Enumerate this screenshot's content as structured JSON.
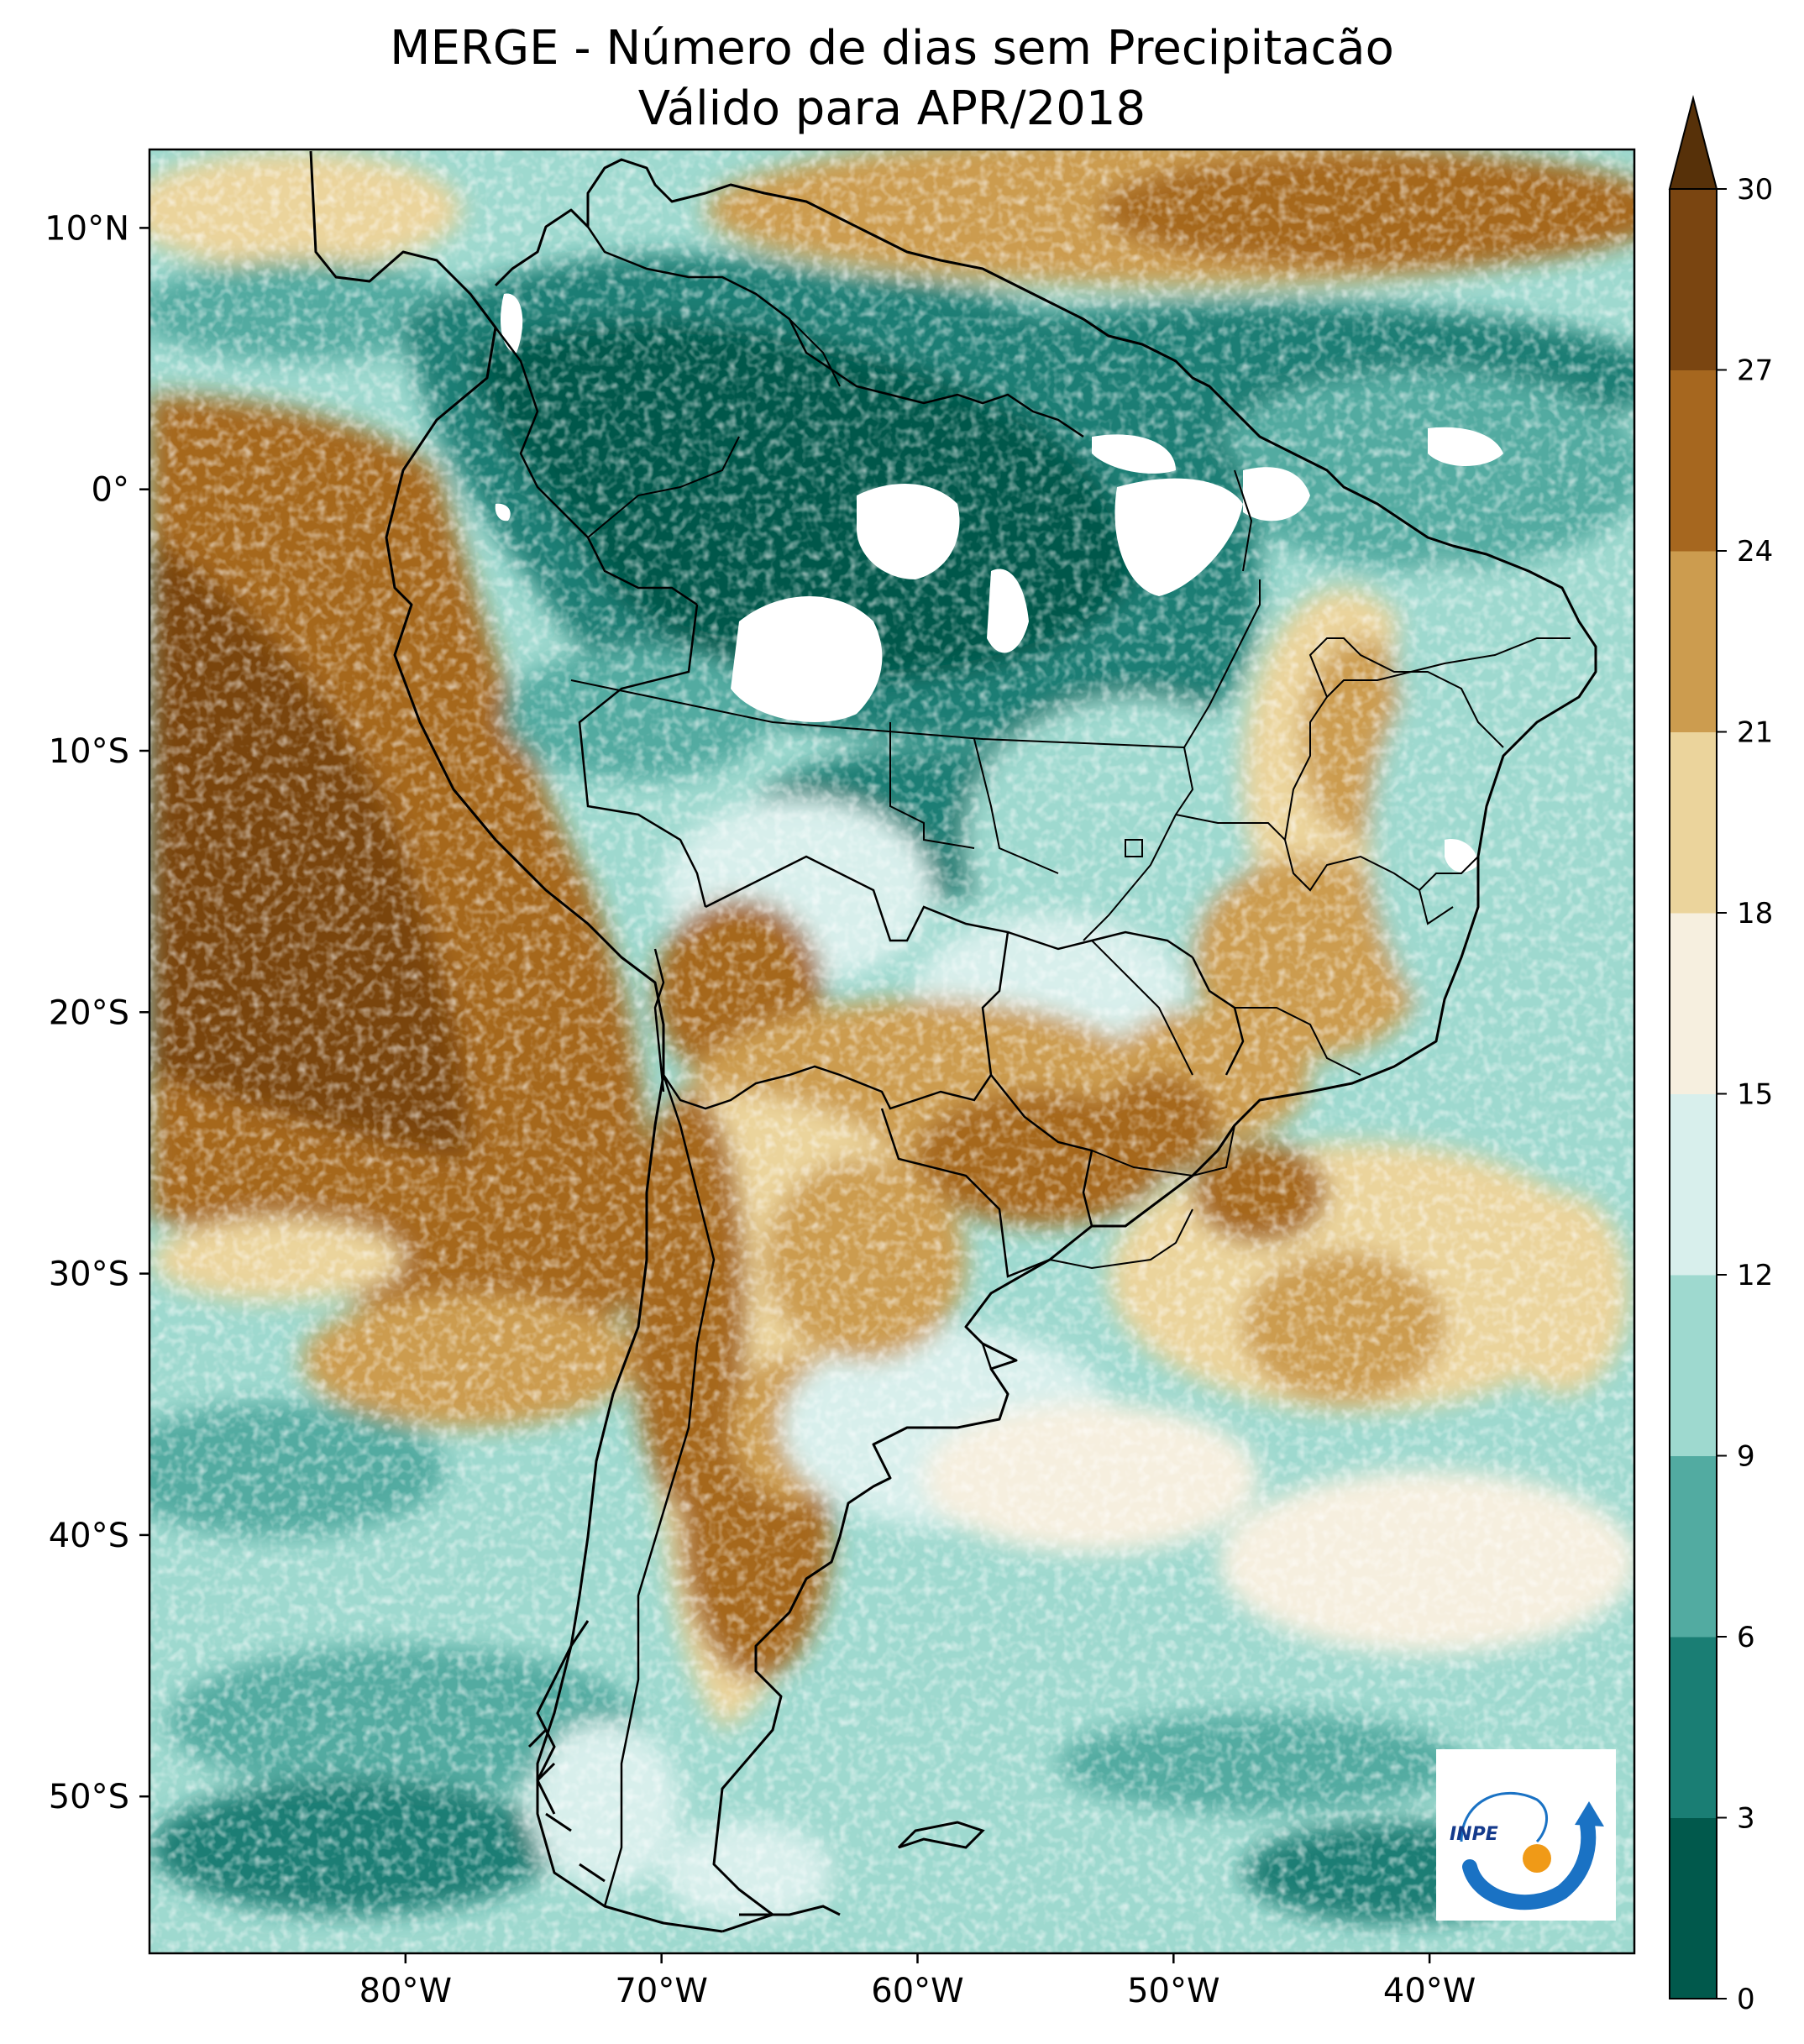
{
  "title": {
    "line1": "MERGE - Número de dias sem Precipitacão",
    "line2": "Válido para APR/2018"
  },
  "map": {
    "lat_range": [
      -56,
      13
    ],
    "lon_range": [
      -90,
      -32
    ],
    "lat_ticks": [
      {
        "value": 10,
        "label": "10°N"
      },
      {
        "value": 0,
        "label": "0°"
      },
      {
        "value": -10,
        "label": "10°S"
      },
      {
        "value": -20,
        "label": "20°S"
      },
      {
        "value": -30,
        "label": "30°S"
      },
      {
        "value": -40,
        "label": "40°S"
      },
      {
        "value": -50,
        "label": "50°S"
      }
    ],
    "lon_ticks": [
      {
        "value": -80,
        "label": "80°W"
      },
      {
        "value": -70,
        "label": "70°W"
      },
      {
        "value": -60,
        "label": "60°W"
      },
      {
        "value": -50,
        "label": "50°W"
      },
      {
        "value": -40,
        "label": "40°W"
      }
    ]
  },
  "colorbar": {
    "ticks": [
      "0",
      "3",
      "6",
      "9",
      "12",
      "15",
      "18",
      "21",
      "24",
      "27",
      "30"
    ],
    "colors": [
      "#01594c",
      "#1a7e74",
      "#52aba1",
      "#9ed9cf",
      "#d8efec",
      "#f6efdf",
      "#ebd49c",
      "#cc9c4f",
      "#a6671f",
      "#7a4511"
    ],
    "extend_color": "#573109",
    "extend": "max"
  },
  "logo": {
    "text": "INPE"
  },
  "colors": {
    "blue": "#1a72c4",
    "orange": "#f09a17"
  }
}
